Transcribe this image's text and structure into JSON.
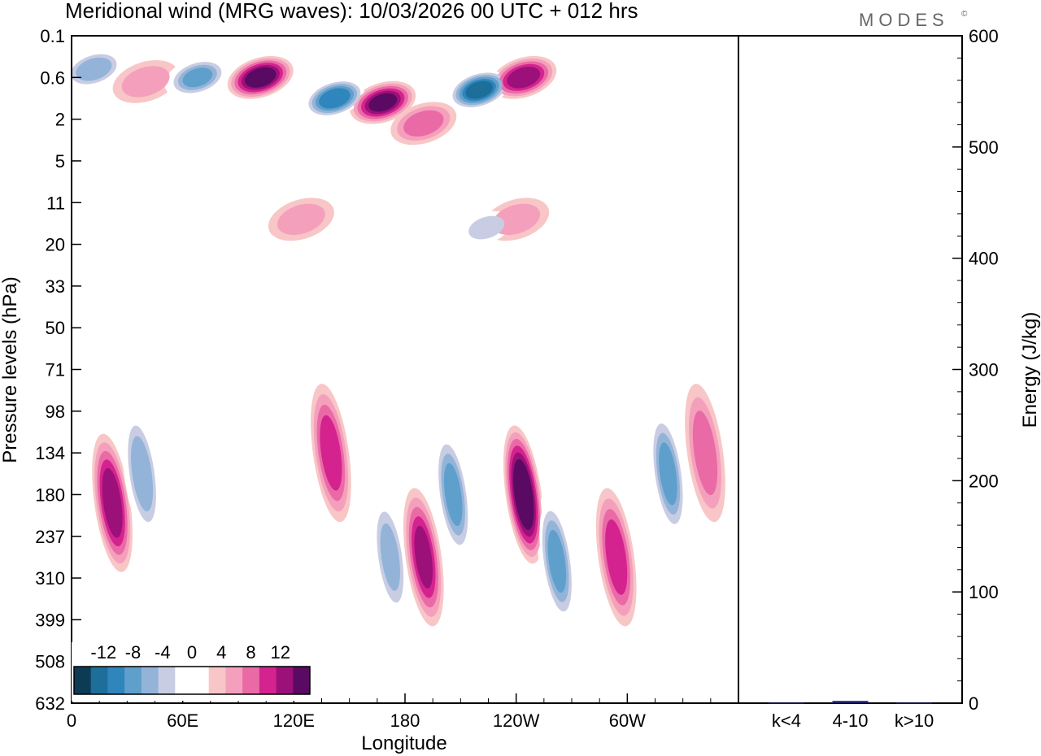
{
  "header": {
    "title": "Meridional wind (MRG waves):  10/03/2026  00 UTC  + 012 hrs",
    "logo": "MODES",
    "logo_mark": "©"
  },
  "chart_data": [
    {
      "type": "heatmap",
      "title": "Meridional wind (MRG waves)",
      "xlabel": "Longitude",
      "ylabel": "Pressure levels (hPa)",
      "x_ticks": [
        "0",
        "60E",
        "120E",
        "180",
        "120W",
        "60W"
      ],
      "x_tick_values": [
        0,
        60,
        120,
        180,
        240,
        300
      ],
      "xlim": [
        0,
        360
      ],
      "y_ticks": [
        "0.1",
        "0.6",
        "2",
        "5",
        "11",
        "20",
        "33",
        "50",
        "71",
        "98",
        "134",
        "180",
        "237",
        "310",
        "399",
        "508",
        "632"
      ],
      "colorbar": {
        "labels": [
          "-12",
          "-8",
          "-4",
          "0",
          "4",
          "8",
          "12"
        ],
        "label_values": [
          -12,
          -8,
          -4,
          0,
          4,
          8,
          12
        ],
        "levels": [
          -14,
          -12,
          -10,
          -8,
          -6,
          -4,
          -2,
          2,
          4,
          6,
          8,
          10,
          12,
          14
        ],
        "colors": [
          "#0d3b55",
          "#1e6e9a",
          "#2f86bc",
          "#5f9fcb",
          "#93b4d8",
          "#c8cde3",
          "#ffffff",
          "#ffffff",
          "#f8c6c6",
          "#f4a0bd",
          "#ea6aa6",
          "#d4238f",
          "#9c1179",
          "#5b0a63"
        ]
      },
      "features": [
        {
          "lon": 12,
          "level_index": 0.8,
          "value": -9
        },
        {
          "lon": 40,
          "level_index": 1.1,
          "value": 5
        },
        {
          "lon": 68,
          "level_index": 1.0,
          "value": -10
        },
        {
          "lon": 102,
          "level_index": 1.0,
          "value": 13
        },
        {
          "lon": 142,
          "level_index": 1.5,
          "value": -13
        },
        {
          "lon": 168,
          "level_index": 1.6,
          "value": 12
        },
        {
          "lon": 190,
          "level_index": 2.1,
          "value": 7
        },
        {
          "lon": 220,
          "level_index": 1.3,
          "value": -14
        },
        {
          "lon": 244,
          "level_index": 1.0,
          "value": 11
        },
        {
          "lon": 224,
          "level_index": 4.6,
          "value": -6
        },
        {
          "lon": 240,
          "level_index": 4.4,
          "value": 5
        },
        {
          "lon": 124,
          "level_index": 4.4,
          "value": 5
        },
        {
          "lon": 22,
          "level_index": 11.2,
          "value": 11
        },
        {
          "lon": 38,
          "level_index": 10.5,
          "value": -9
        },
        {
          "lon": 140,
          "level_index": 10.0,
          "value": 9
        },
        {
          "lon": 172,
          "level_index": 12.5,
          "value": -8
        },
        {
          "lon": 190,
          "level_index": 12.5,
          "value": 10
        },
        {
          "lon": 206,
          "level_index": 11.0,
          "value": -10
        },
        {
          "lon": 244,
          "level_index": 11.0,
          "value": 14
        },
        {
          "lon": 262,
          "level_index": 12.6,
          "value": -10
        },
        {
          "lon": 294,
          "level_index": 12.5,
          "value": 9
        },
        {
          "lon": 322,
          "level_index": 10.5,
          "value": -10
        },
        {
          "lon": 342,
          "level_index": 10.0,
          "value": 7
        }
      ]
    },
    {
      "type": "bar",
      "ylabel": "Energy (J/kg)",
      "categories": [
        "k<4",
        "4-10",
        "k>10"
      ],
      "values": [
        0.5,
        2,
        0.5
      ],
      "ylim": [
        0,
        600
      ],
      "y_ticks": [
        0,
        100,
        200,
        300,
        400,
        500,
        600
      ],
      "bar_color": "#1a1a66"
    }
  ]
}
